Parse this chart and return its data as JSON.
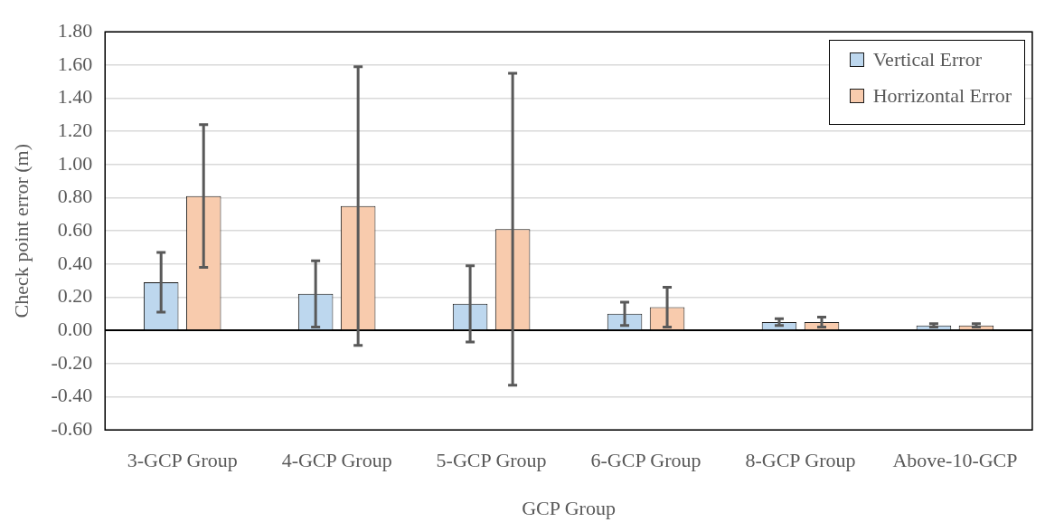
{
  "chart_data": {
    "type": "bar",
    "xlabel": "GCP Group",
    "ylabel": "Check point error (m)",
    "categories": [
      "3-GCP Group",
      "4-GCP Group",
      "5-GCP Group",
      "6-GCP Group",
      "8-GCP Group",
      "Above-10-GCP"
    ],
    "series": [
      {
        "name": "Vertical Error",
        "color": "#bdd7ee",
        "values": [
          0.29,
          0.22,
          0.16,
          0.1,
          0.05,
          0.03
        ],
        "errors": [
          0.18,
          0.2,
          0.23,
          0.07,
          0.02,
          0.01
        ]
      },
      {
        "name": "Horrizontal Error",
        "color": "#f8cbad",
        "values": [
          0.81,
          0.75,
          0.61,
          0.14,
          0.05,
          0.03
        ],
        "errors": [
          0.43,
          0.84,
          0.94,
          0.12,
          0.03,
          0.01
        ]
      }
    ],
    "ylim": [
      -0.6,
      1.8
    ],
    "yticks": [
      {
        "value": -0.6,
        "label": "-0.60"
      },
      {
        "value": -0.4,
        "label": "-0.40"
      },
      {
        "value": -0.2,
        "label": "-0.20"
      },
      {
        "value": 0,
        "label": "0.00"
      },
      {
        "value": 0.2,
        "label": "0.20"
      },
      {
        "value": 0.4,
        "label": "0.40"
      },
      {
        "value": 0.6,
        "label": "0.60"
      },
      {
        "value": 0.8,
        "label": "0.80"
      },
      {
        "value": 1.0,
        "label": "1.00"
      },
      {
        "value": 1.2,
        "label": "1.20"
      },
      {
        "value": 1.4,
        "label": "1.40"
      },
      {
        "value": 1.6,
        "label": "1.60"
      },
      {
        "value": 1.8,
        "label": "1.80"
      }
    ],
    "grid": "y",
    "legend": "top right"
  }
}
